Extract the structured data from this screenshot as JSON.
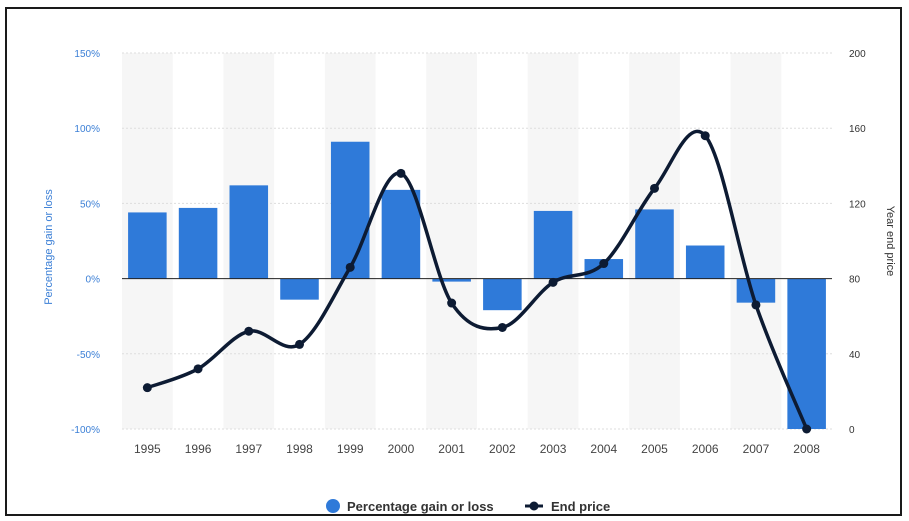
{
  "chart_data": {
    "type": "bar",
    "categories": [
      "1995",
      "1996",
      "1997",
      "1998",
      "1999",
      "2000",
      "2001",
      "2002",
      "2003",
      "2004",
      "2005",
      "2006",
      "2007",
      "2008"
    ],
    "series": [
      {
        "name": "Percentage gain or loss",
        "type": "bar",
        "axis": "left",
        "color": "#2f7ad9",
        "values": [
          44,
          47,
          62,
          -14,
          91,
          59,
          -2,
          -21,
          45,
          13,
          46,
          22,
          -16,
          -100
        ]
      },
      {
        "name": "End price",
        "type": "line",
        "axis": "right",
        "color": "#0d1b33",
        "values": [
          22,
          32,
          52,
          45,
          86,
          136,
          67,
          54,
          78,
          88,
          128,
          156,
          66,
          0
        ]
      }
    ],
    "y_left": {
      "label": "Percentage gain or loss",
      "min": -100,
      "max": 150,
      "ticks": [
        -100,
        -50,
        0,
        50,
        100,
        150
      ],
      "tick_labels": [
        "-100%",
        "-50%",
        "0%",
        "50%",
        "100%",
        "150%"
      ]
    },
    "y_right": {
      "label": "Year end price",
      "min": 0,
      "max": 200,
      "ticks": [
        0,
        40,
        80,
        120,
        160,
        200
      ],
      "tick_labels": [
        "0",
        "40",
        "80",
        "120",
        "160",
        "200"
      ]
    },
    "grid": true,
    "legend_position": "bottom-center",
    "alternating_column_bands": true
  }
}
